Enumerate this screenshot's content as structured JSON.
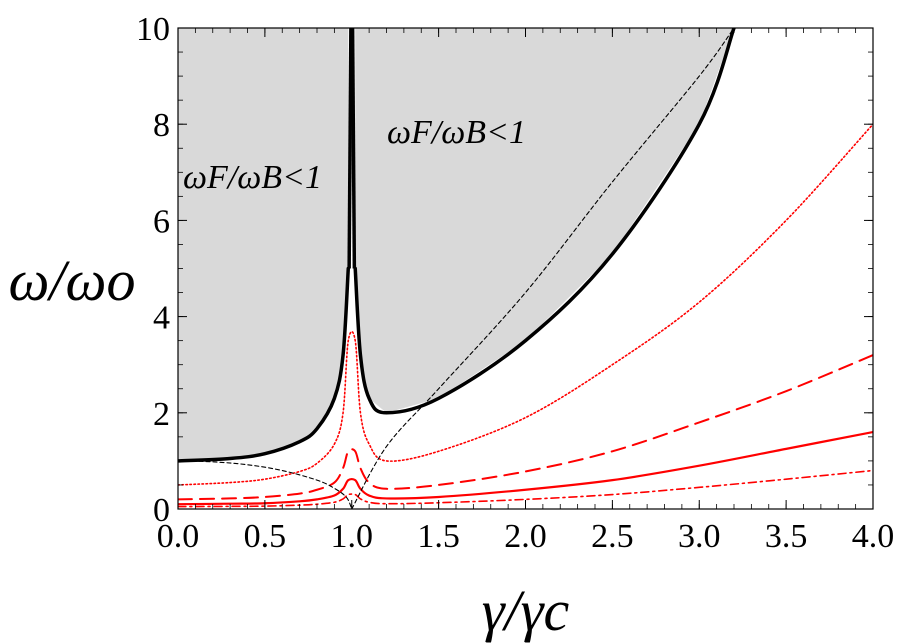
{
  "chart_data": {
    "type": "line",
    "xlabel": "γ/γc",
    "ylabel": "ω/ωo",
    "xlim": [
      0,
      4
    ],
    "ylim": [
      0,
      10
    ],
    "x_ticks": [
      "0.0",
      "0.5",
      "1.0",
      "1.5",
      "2.0",
      "2.5",
      "3.0",
      "3.5",
      "4.0"
    ],
    "y_ticks": [
      "0",
      "2",
      "4",
      "6",
      "8",
      "10"
    ],
    "grid": false,
    "legend": "none",
    "shaded_region": {
      "fill": "#d9d9d9",
      "labels": [
        "ωF/ωB<1",
        "ωF/ωB<1"
      ]
    },
    "series": [
      {
        "color": "#000000",
        "style": "solid-thick",
        "x": [
          0,
          0.3,
          0.5,
          0.7,
          0.8,
          0.9,
          0.95,
          0.98
        ],
        "y": [
          1.0,
          1.05,
          1.15,
          1.4,
          1.67,
          2.3,
          3.2,
          5.0
        ]
      },
      {
        "color": "#000000",
        "style": "solid-thick",
        "x": [
          1.02,
          1.05,
          1.1,
          1.2,
          1.5,
          2.0,
          2.5,
          3.0,
          3.2
        ],
        "y": [
          5.0,
          3.2,
          2.3,
          2.0,
          2.3,
          3.5,
          5.3,
          8.0,
          10.0
        ]
      },
      {
        "color": "#000000",
        "style": "dashed-thin",
        "x": [
          0,
          0.2,
          0.4,
          0.6,
          0.8,
          0.9,
          0.97,
          1.0
        ],
        "y": [
          1.0,
          0.98,
          0.92,
          0.8,
          0.6,
          0.43,
          0.24,
          0.0
        ]
      },
      {
        "color": "#000000",
        "style": "dashed-thin",
        "x": [
          1.0,
          1.2,
          1.5,
          2.0,
          2.5,
          3.0,
          3.2
        ],
        "y": [
          0.0,
          1.3,
          2.5,
          4.5,
          6.8,
          9.0,
          10.0
        ]
      },
      {
        "color": "#ff0000",
        "style": "dotted",
        "x": [
          0,
          0.3,
          0.5,
          0.7,
          0.8,
          0.9,
          0.95,
          0.98,
          1.02,
          1.05,
          1.1,
          1.2,
          1.5,
          2.0,
          2.5,
          3.0,
          3.5,
          4.0
        ],
        "y": [
          0.5,
          0.55,
          0.62,
          0.78,
          0.95,
          1.35,
          2.0,
          3.5,
          3.5,
          2.0,
          1.35,
          1.0,
          1.2,
          1.9,
          3.0,
          4.3,
          6.0,
          8.0
        ]
      },
      {
        "color": "#ff0000",
        "style": "dashed",
        "x": [
          0,
          0.3,
          0.5,
          0.7,
          0.8,
          0.9,
          0.95,
          0.98,
          1.02,
          1.05,
          1.1,
          1.2,
          1.5,
          2.0,
          2.5,
          3.0,
          3.5,
          4.0
        ],
        "y": [
          0.2,
          0.22,
          0.25,
          0.32,
          0.4,
          0.55,
          0.85,
          1.2,
          1.2,
          0.85,
          0.55,
          0.42,
          0.5,
          0.78,
          1.2,
          1.8,
          2.45,
          3.2
        ]
      },
      {
        "color": "#ff0000",
        "style": "solid",
        "x": [
          0,
          0.3,
          0.5,
          0.7,
          0.8,
          0.9,
          0.95,
          0.98,
          1.02,
          1.05,
          1.1,
          1.2,
          1.5,
          2.0,
          2.5,
          3.0,
          3.5,
          4.0
        ],
        "y": [
          0.1,
          0.11,
          0.12,
          0.16,
          0.2,
          0.28,
          0.42,
          0.6,
          0.6,
          0.42,
          0.28,
          0.22,
          0.25,
          0.4,
          0.6,
          0.9,
          1.25,
          1.6
        ]
      },
      {
        "color": "#ff0000",
        "style": "dashdot",
        "x": [
          0,
          0.3,
          0.5,
          0.7,
          0.8,
          0.9,
          0.95,
          0.98,
          1.02,
          1.05,
          1.1,
          1.2,
          1.5,
          2.0,
          2.5,
          3.0,
          3.5,
          4.0
        ],
        "y": [
          0.05,
          0.055,
          0.06,
          0.08,
          0.1,
          0.14,
          0.21,
          0.3,
          0.3,
          0.21,
          0.14,
          0.11,
          0.13,
          0.2,
          0.3,
          0.45,
          0.62,
          0.8
        ]
      }
    ]
  }
}
